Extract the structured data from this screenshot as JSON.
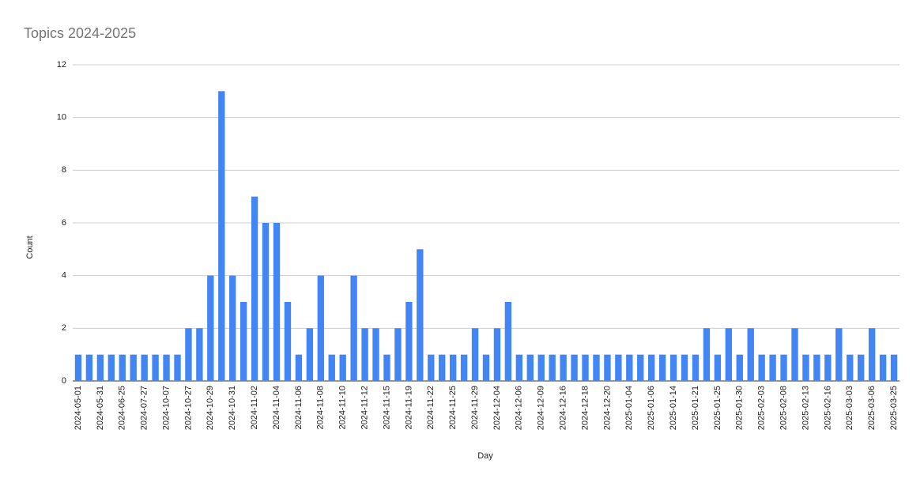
{
  "chart_data": {
    "type": "bar",
    "title": "Topics 2024-2025",
    "x_label": "Day",
    "y_label": "Count",
    "categories": [
      "2024-05-01",
      null,
      "2024-05-31",
      null,
      "2024-06-25",
      null,
      "2024-07-27",
      null,
      "2024-10-07",
      null,
      "2024-10-27",
      null,
      "2024-10-29",
      null,
      "2024-10-31",
      null,
      "2024-11-02",
      null,
      "2024-11-04",
      null,
      "2024-11-06",
      null,
      "2024-11-08",
      null,
      "2024-11-10",
      null,
      "2024-11-12",
      null,
      "2024-11-15",
      null,
      "2024-11-19",
      null,
      "2024-11-22",
      null,
      "2024-11-25",
      null,
      "2024-11-29",
      null,
      "2024-12-04",
      null,
      "2024-12-06",
      null,
      "2024-12-09",
      null,
      "2024-12-16",
      null,
      "2024-12-18",
      null,
      "2024-12-20",
      null,
      "2025-01-04",
      null,
      "2025-01-06",
      null,
      "2025-01-14",
      null,
      "2025-01-21",
      null,
      "2025-01-25",
      null,
      "2025-01-30",
      null,
      "2025-02-03",
      null,
      "2025-02-08",
      null,
      "2025-02-13",
      null,
      "2025-02-16",
      null,
      "2025-03-03",
      null,
      "2025-03-06",
      null,
      "2025-03-25"
    ],
    "values": [
      1,
      1,
      1,
      1,
      1,
      1,
      1,
      1,
      1,
      1,
      2,
      2,
      4,
      11,
      4,
      3,
      7,
      6,
      6,
      3,
      1,
      2,
      4,
      1,
      1,
      4,
      2,
      2,
      1,
      2,
      3,
      5,
      1,
      1,
      1,
      1,
      2,
      1,
      2,
      3,
      1,
      1,
      1,
      1,
      1,
      1,
      1,
      1,
      1,
      1,
      1,
      1,
      1,
      1,
      1,
      1,
      1,
      2,
      1,
      2,
      1,
      2,
      1,
      1,
      1,
      2,
      1,
      1,
      1,
      2,
      1,
      1,
      2,
      1,
      1
    ],
    "color": "#4285f4",
    "ylim": [
      0,
      12
    ],
    "yticks": [
      0,
      2,
      4,
      6,
      8,
      10,
      12
    ],
    "grid": true
  }
}
